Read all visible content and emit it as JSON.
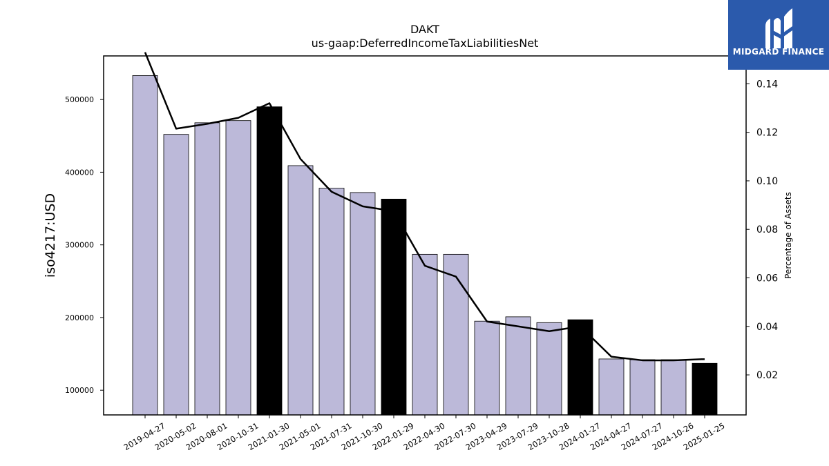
{
  "chart_data": {
    "type": "bar",
    "title": "DAKT",
    "subtitle": "us-gaap:DeferredIncomeTaxLiabilitiesNet",
    "ylabel": "iso4217:USD",
    "y2label": "Percentage of Assets",
    "ylim": [
      66000,
      560000
    ],
    "y2lim": [
      0.0035,
      0.1515
    ],
    "yticks": [
      "100000",
      "200000",
      "300000",
      "400000",
      "500000"
    ],
    "y2ticks": [
      "0.02",
      "0.04",
      "0.06",
      "0.08",
      "0.10",
      "0.12",
      "0.14"
    ],
    "categories": [
      "2019-04-27",
      "2020-05-02",
      "2020-08-01",
      "2020-10-31",
      "2021-01-30",
      "2021-05-01",
      "2021-07-31",
      "2021-10-30",
      "2022-01-29",
      "2022-04-30",
      "2022-07-30",
      "2023-04-29",
      "2023-07-29",
      "2023-10-28",
      "2024-01-27",
      "2024-04-27",
      "2024-07-27",
      "2024-10-26",
      "2025-01-25"
    ],
    "values": [
      533000,
      452000,
      468000,
      471000,
      490000,
      409000,
      378000,
      372000,
      363000,
      287000,
      287000,
      195000,
      201000,
      193000,
      197000,
      143000,
      142000,
      142000,
      137000
    ],
    "highlighted": [
      false,
      false,
      false,
      false,
      true,
      false,
      false,
      false,
      true,
      false,
      false,
      false,
      false,
      false,
      true,
      false,
      false,
      false,
      true
    ],
    "line_values": [
      0.153,
      0.1215,
      0.1235,
      0.126,
      0.132,
      0.109,
      0.0955,
      0.0895,
      0.0875,
      0.065,
      0.0605,
      0.042,
      0.04,
      0.038,
      0.04,
      0.0275,
      0.026,
      0.026,
      0.0265
    ],
    "bar_color": "#bcb9d9",
    "highlight_color": "#000000",
    "line_color": "#000000"
  },
  "logo": {
    "text": "MIDGARD FINANCE",
    "background": "#2b5aac"
  }
}
